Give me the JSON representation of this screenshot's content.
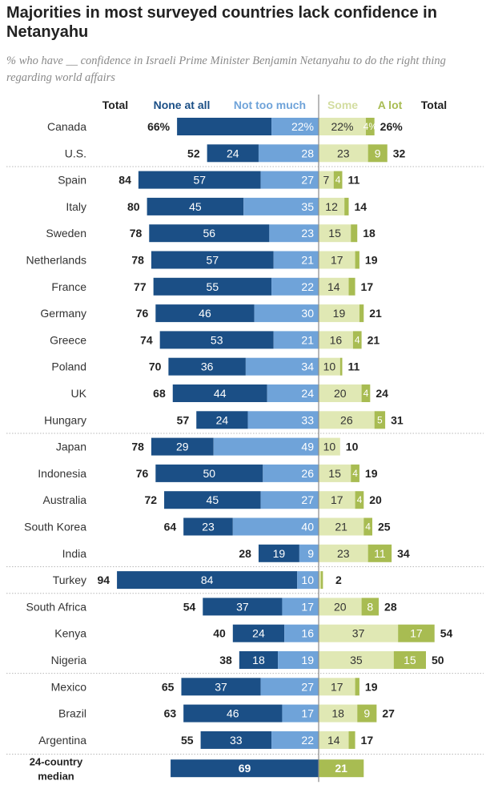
{
  "title": "Majorities in most surveyed countries lack confidence in Netanyahu",
  "subtitle": "% who have __ confidence in Israeli Prime Minister Benjamin Netanyahu to do the right thing regarding world affairs",
  "colors": {
    "none_at_all": "#1b4f86",
    "not_too_much": "#6fa3d9",
    "some": "#e0e8b4",
    "a_lot": "#a8bc52",
    "separator": "#b8b8b8",
    "center_line": "#8a8a8a"
  },
  "chart_data": {
    "type": "bar",
    "subtype": "diverging-stacked",
    "column_headers": {
      "neg_total": "Total",
      "none_at_all": "None at all",
      "not_too_much": "Not too much",
      "some": "Some",
      "a_lot": "A lot",
      "pos_total": "Total"
    },
    "series": [
      {
        "name": "None at all",
        "side": "negative"
      },
      {
        "name": "Not too much",
        "side": "negative"
      },
      {
        "name": "Some",
        "side": "positive"
      },
      {
        "name": "A lot",
        "side": "positive"
      }
    ],
    "rows": [
      {
        "country": "Canada",
        "neg_total": "66%",
        "none_at_all": 44,
        "none_label": "",
        "not_too_much": 22,
        "ntm_label": "22%",
        "some": 22,
        "some_label": "22%",
        "a_lot": 4,
        "alot_label": "4%",
        "pos_total": "26%",
        "group": 1
      },
      {
        "country": "U.S.",
        "neg_total": "52",
        "none_at_all": 24,
        "none_label": "24",
        "not_too_much": 28,
        "ntm_label": "28",
        "some": 23,
        "some_label": "23",
        "a_lot": 9,
        "alot_label": "9",
        "pos_total": "32",
        "group": 1
      },
      {
        "country": "Spain",
        "neg_total": "84",
        "none_at_all": 57,
        "none_label": "57",
        "not_too_much": 27,
        "ntm_label": "27",
        "some": 7,
        "some_label": "7",
        "a_lot": 4,
        "alot_label": "4",
        "pos_total": "11",
        "group": 2
      },
      {
        "country": "Italy",
        "neg_total": "80",
        "none_at_all": 45,
        "none_label": "45",
        "not_too_much": 35,
        "ntm_label": "35",
        "some": 12,
        "some_label": "12",
        "a_lot": 2,
        "alot_label": "",
        "pos_total": "14",
        "group": 2
      },
      {
        "country": "Sweden",
        "neg_total": "78",
        "none_at_all": 56,
        "none_label": "56",
        "not_too_much": 23,
        "ntm_label": "23",
        "some": 15,
        "some_label": "15",
        "a_lot": 3,
        "alot_label": "",
        "pos_total": "18",
        "group": 2
      },
      {
        "country": "Netherlands",
        "neg_total": "78",
        "none_at_all": 57,
        "none_label": "57",
        "not_too_much": 21,
        "ntm_label": "21",
        "some": 17,
        "some_label": "17",
        "a_lot": 2,
        "alot_label": "",
        "pos_total": "19",
        "group": 2
      },
      {
        "country": "France",
        "neg_total": "77",
        "none_at_all": 55,
        "none_label": "55",
        "not_too_much": 22,
        "ntm_label": "22",
        "some": 14,
        "some_label": "14",
        "a_lot": 3,
        "alot_label": "",
        "pos_total": "17",
        "group": 2
      },
      {
        "country": "Germany",
        "neg_total": "76",
        "none_at_all": 46,
        "none_label": "46",
        "not_too_much": 30,
        "ntm_label": "30",
        "some": 19,
        "some_label": "19",
        "a_lot": 2,
        "alot_label": "",
        "pos_total": "21",
        "group": 2
      },
      {
        "country": "Greece",
        "neg_total": "74",
        "none_at_all": 53,
        "none_label": "53",
        "not_too_much": 21,
        "ntm_label": "21",
        "some": 16,
        "some_label": "16",
        "a_lot": 4,
        "alot_label": "4",
        "pos_total": "21",
        "group": 2
      },
      {
        "country": "Poland",
        "neg_total": "70",
        "none_at_all": 36,
        "none_label": "36",
        "not_too_much": 34,
        "ntm_label": "34",
        "some": 10,
        "some_label": "10",
        "a_lot": 1,
        "alot_label": "",
        "pos_total": "11",
        "group": 2
      },
      {
        "country": "UK",
        "neg_total": "68",
        "none_at_all": 44,
        "none_label": "44",
        "not_too_much": 24,
        "ntm_label": "24",
        "some": 20,
        "some_label": "20",
        "a_lot": 4,
        "alot_label": "4",
        "pos_total": "24",
        "group": 2
      },
      {
        "country": "Hungary",
        "neg_total": "57",
        "none_at_all": 24,
        "none_label": "24",
        "not_too_much": 33,
        "ntm_label": "33",
        "some": 26,
        "some_label": "26",
        "a_lot": 5,
        "alot_label": "5",
        "pos_total": "31",
        "group": 2
      },
      {
        "country": "Japan",
        "neg_total": "78",
        "none_at_all": 29,
        "none_label": "29",
        "not_too_much": 49,
        "ntm_label": "49",
        "some": 10,
        "some_label": "10",
        "a_lot": 0,
        "alot_label": "",
        "pos_total": "10",
        "group": 3
      },
      {
        "country": "Indonesia",
        "neg_total": "76",
        "none_at_all": 50,
        "none_label": "50",
        "not_too_much": 26,
        "ntm_label": "26",
        "some": 15,
        "some_label": "15",
        "a_lot": 4,
        "alot_label": "4",
        "pos_total": "19",
        "group": 3
      },
      {
        "country": "Australia",
        "neg_total": "72",
        "none_at_all": 45,
        "none_label": "45",
        "not_too_much": 27,
        "ntm_label": "27",
        "some": 17,
        "some_label": "17",
        "a_lot": 4,
        "alot_label": "4",
        "pos_total": "20",
        "group": 3
      },
      {
        "country": "South Korea",
        "neg_total": "64",
        "none_at_all": 23,
        "none_label": "23",
        "not_too_much": 40,
        "ntm_label": "40",
        "some": 21,
        "some_label": "21",
        "a_lot": 4,
        "alot_label": "4",
        "pos_total": "25",
        "group": 3
      },
      {
        "country": "India",
        "neg_total": "28",
        "none_at_all": 19,
        "none_label": "19",
        "not_too_much": 9,
        "ntm_label": "9",
        "some": 23,
        "some_label": "23",
        "a_lot": 11,
        "alot_label": "11",
        "pos_total": "34",
        "group": 3
      },
      {
        "country": "Turkey",
        "neg_total": "94",
        "none_at_all": 84,
        "none_label": "84",
        "not_too_much": 10,
        "ntm_label": "10",
        "some": 1,
        "some_label": "",
        "a_lot": 1,
        "alot_label": "",
        "pos_total": "2",
        "group": 4
      },
      {
        "country": "South Africa",
        "neg_total": "54",
        "none_at_all": 37,
        "none_label": "37",
        "not_too_much": 17,
        "ntm_label": "17",
        "some": 20,
        "some_label": "20",
        "a_lot": 8,
        "alot_label": "8",
        "pos_total": "28",
        "group": 5
      },
      {
        "country": "Kenya",
        "neg_total": "40",
        "none_at_all": 24,
        "none_label": "24",
        "not_too_much": 16,
        "ntm_label": "16",
        "some": 37,
        "some_label": "37",
        "a_lot": 17,
        "alot_label": "17",
        "pos_total": "54",
        "group": 5
      },
      {
        "country": "Nigeria",
        "neg_total": "38",
        "none_at_all": 18,
        "none_label": "18",
        "not_too_much": 19,
        "ntm_label": "19",
        "some": 35,
        "some_label": "35",
        "a_lot": 15,
        "alot_label": "15",
        "pos_total": "50",
        "group": 5
      },
      {
        "country": "Mexico",
        "neg_total": "65",
        "none_at_all": 37,
        "none_label": "37",
        "not_too_much": 27,
        "ntm_label": "27",
        "some": 17,
        "some_label": "17",
        "a_lot": 2,
        "alot_label": "",
        "pos_total": "19",
        "group": 6
      },
      {
        "country": "Brazil",
        "neg_total": "63",
        "none_at_all": 46,
        "none_label": "46",
        "not_too_much": 17,
        "ntm_label": "17",
        "some": 18,
        "some_label": "18",
        "a_lot": 9,
        "alot_label": "9",
        "pos_total": "27",
        "group": 6
      },
      {
        "country": "Argentina",
        "neg_total": "55",
        "none_at_all": 33,
        "none_label": "33",
        "not_too_much": 22,
        "ntm_label": "22",
        "some": 14,
        "some_label": "14",
        "a_lot": 3,
        "alot_label": "",
        "pos_total": "17",
        "group": 6
      }
    ],
    "median": {
      "label_line1": "24-country",
      "label_line2": "median",
      "negative": 69,
      "neg_label": "69",
      "positive": 21,
      "pos_label": "21"
    },
    "xlim": [
      -100,
      100
    ]
  }
}
